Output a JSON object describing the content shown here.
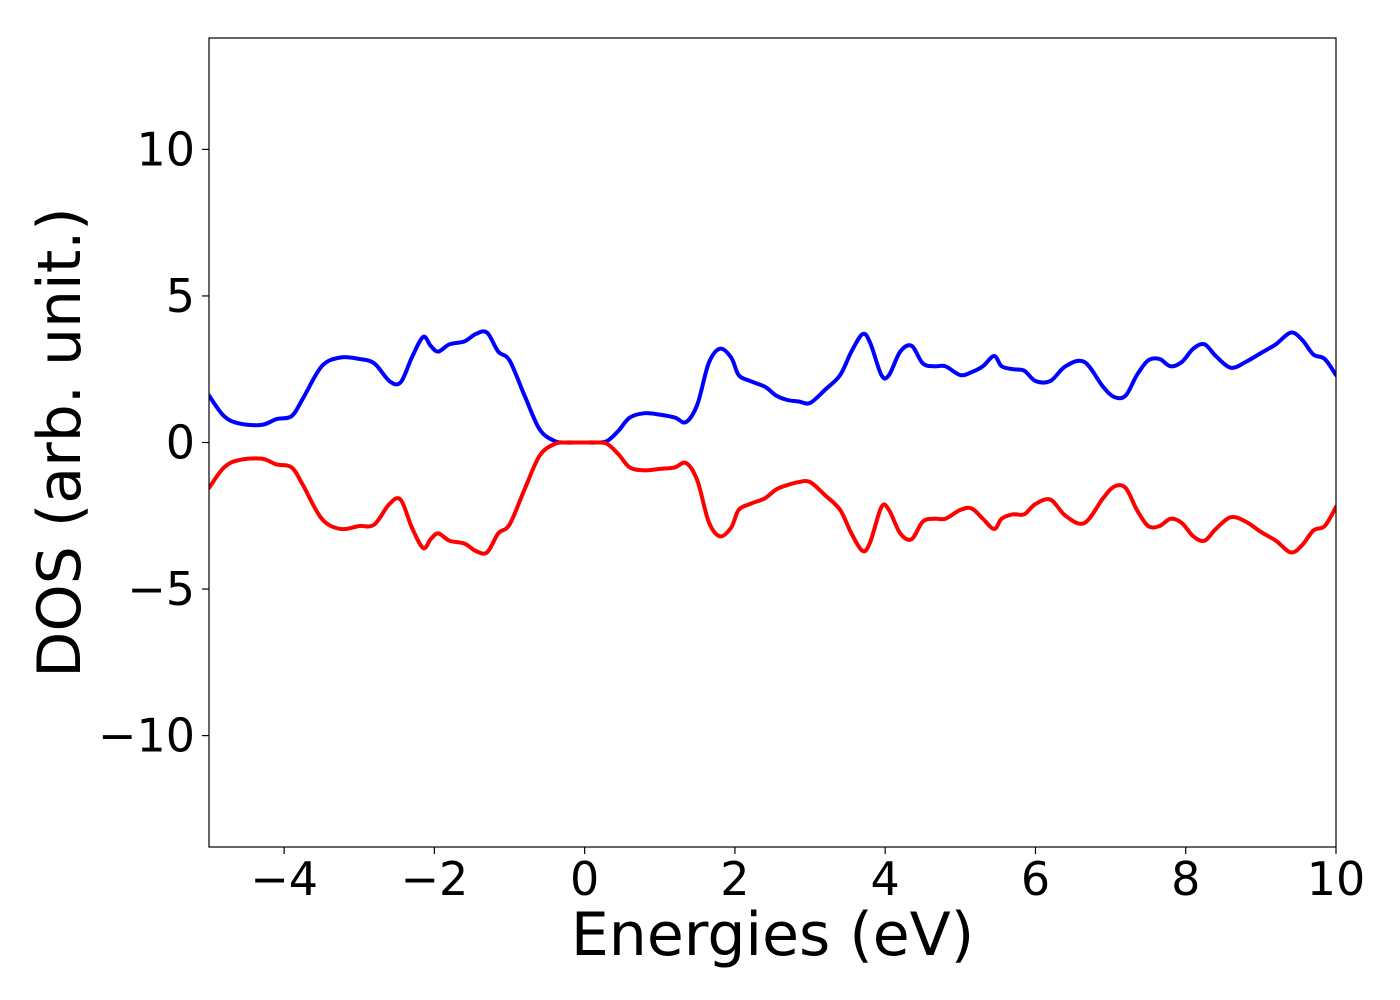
{
  "chart_data": {
    "type": "line",
    "title": "",
    "xlabel": "Energies (eV)",
    "ylabel": "DOS (arb. unit.)",
    "xlim": [
      -5,
      10
    ],
    "ylim": [
      -13.8,
      13.8
    ],
    "xticks": [
      -4,
      -2,
      0,
      2,
      4,
      6,
      8,
      10
    ],
    "yticks": [
      -10,
      -5,
      0,
      5,
      10
    ],
    "xtick_labels": [
      "−4",
      "−2",
      "0",
      "2",
      "4",
      "6",
      "8",
      "10"
    ],
    "ytick_labels": [
      "−10",
      "−5",
      "0",
      "5",
      "10"
    ],
    "grid": false,
    "legend": false,
    "colors": {
      "up": "#0000ff",
      "down": "#ff0000",
      "axes": "#000000"
    },
    "series": [
      {
        "color": "#0000ff",
        "x": [
          -5.0,
          -4.8,
          -4.6,
          -4.3,
          -4.1,
          -3.9,
          -3.75,
          -3.5,
          -3.25,
          -3.0,
          -2.8,
          -2.6,
          -2.45,
          -2.3,
          -2.15,
          -2.05,
          -1.95,
          -1.8,
          -1.6,
          -1.45,
          -1.3,
          -1.15,
          -1.0,
          -0.8,
          -0.6,
          -0.4,
          -0.25,
          -0.1,
          0.0,
          0.15,
          0.3,
          0.45,
          0.6,
          0.8,
          1.0,
          1.2,
          1.35,
          1.5,
          1.65,
          1.8,
          1.95,
          2.05,
          2.2,
          2.4,
          2.55,
          2.7,
          2.85,
          3.0,
          3.2,
          3.4,
          3.55,
          3.7,
          3.8,
          3.95,
          4.05,
          4.2,
          4.35,
          4.5,
          4.65,
          4.8,
          5.0,
          5.15,
          5.3,
          5.45,
          5.55,
          5.7,
          5.85,
          6.0,
          6.2,
          6.4,
          6.65,
          6.9,
          7.05,
          7.2,
          7.35,
          7.5,
          7.65,
          7.8,
          7.95,
          8.1,
          8.25,
          8.4,
          8.6,
          8.8,
          9.0,
          9.2,
          9.4,
          9.55,
          9.7,
          9.85,
          10.0
        ],
        "values": [
          1.6,
          0.9,
          0.65,
          0.6,
          0.8,
          0.9,
          1.5,
          2.6,
          2.9,
          2.85,
          2.7,
          2.1,
          2.05,
          2.9,
          3.6,
          3.3,
          3.1,
          3.35,
          3.45,
          3.7,
          3.75,
          3.1,
          2.8,
          1.6,
          0.45,
          0.05,
          0.0,
          0.0,
          0.0,
          0.0,
          0.05,
          0.4,
          0.85,
          1.0,
          0.95,
          0.85,
          0.7,
          1.3,
          2.7,
          3.2,
          2.9,
          2.3,
          2.1,
          1.9,
          1.6,
          1.45,
          1.4,
          1.35,
          1.8,
          2.3,
          3.1,
          3.7,
          3.4,
          2.3,
          2.3,
          3.1,
          3.3,
          2.7,
          2.6,
          2.6,
          2.3,
          2.4,
          2.6,
          2.95,
          2.6,
          2.5,
          2.45,
          2.1,
          2.1,
          2.6,
          2.75,
          1.9,
          1.55,
          1.6,
          2.3,
          2.8,
          2.85,
          2.6,
          2.75,
          3.2,
          3.35,
          2.95,
          2.55,
          2.75,
          3.05,
          3.35,
          3.75,
          3.5,
          3.0,
          2.85,
          2.3
        ]
      },
      {
        "color": "#ff0000",
        "x": [
          -5.0,
          -4.8,
          -4.6,
          -4.3,
          -4.1,
          -3.9,
          -3.75,
          -3.5,
          -3.25,
          -3.0,
          -2.8,
          -2.6,
          -2.45,
          -2.3,
          -2.15,
          -2.05,
          -1.95,
          -1.8,
          -1.6,
          -1.45,
          -1.3,
          -1.15,
          -1.0,
          -0.8,
          -0.6,
          -0.4,
          -0.25,
          -0.1,
          0.0,
          0.15,
          0.3,
          0.45,
          0.6,
          0.8,
          1.0,
          1.2,
          1.35,
          1.5,
          1.65,
          1.8,
          1.95,
          2.05,
          2.2,
          2.4,
          2.55,
          2.7,
          2.85,
          3.0,
          3.2,
          3.4,
          3.55,
          3.7,
          3.8,
          3.95,
          4.05,
          4.2,
          4.35,
          4.5,
          4.65,
          4.8,
          5.0,
          5.15,
          5.3,
          5.45,
          5.55,
          5.7,
          5.85,
          6.0,
          6.2,
          6.4,
          6.65,
          6.9,
          7.05,
          7.2,
          7.35,
          7.5,
          7.65,
          7.8,
          7.95,
          8.1,
          8.25,
          8.4,
          8.6,
          8.8,
          9.0,
          9.2,
          9.4,
          9.55,
          9.7,
          9.85,
          10.0
        ],
        "values": [
          -1.55,
          -0.85,
          -0.6,
          -0.55,
          -0.75,
          -0.85,
          -1.45,
          -2.6,
          -2.95,
          -2.85,
          -2.8,
          -2.1,
          -1.95,
          -2.9,
          -3.6,
          -3.3,
          -3.1,
          -3.35,
          -3.45,
          -3.7,
          -3.75,
          -3.1,
          -2.8,
          -1.6,
          -0.45,
          -0.05,
          0.0,
          0.0,
          0.0,
          0.0,
          -0.05,
          -0.4,
          -0.85,
          -0.95,
          -0.9,
          -0.85,
          -0.7,
          -1.3,
          -2.7,
          -3.2,
          -2.9,
          -2.3,
          -2.1,
          -1.9,
          -1.6,
          -1.45,
          -1.35,
          -1.35,
          -1.8,
          -2.3,
          -3.1,
          -3.7,
          -3.4,
          -2.2,
          -2.3,
          -3.1,
          -3.3,
          -2.7,
          -2.6,
          -2.6,
          -2.3,
          -2.25,
          -2.6,
          -2.95,
          -2.6,
          -2.45,
          -2.45,
          -2.1,
          -1.95,
          -2.5,
          -2.75,
          -1.9,
          -1.5,
          -1.55,
          -2.3,
          -2.85,
          -2.85,
          -2.6,
          -2.75,
          -3.2,
          -3.35,
          -2.95,
          -2.55,
          -2.7,
          -3.05,
          -3.35,
          -3.75,
          -3.5,
          -3.0,
          -2.85,
          -2.2
        ]
      }
    ]
  }
}
